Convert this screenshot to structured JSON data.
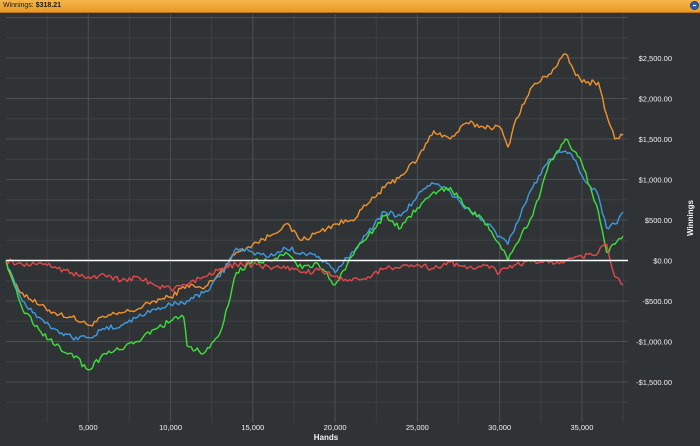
{
  "window": {
    "title_label": "Winnings:",
    "title_value": "$318.21"
  },
  "chart_data": {
    "type": "line",
    "xlabel": "Hands",
    "ylabel": "Winnings",
    "xlim": [
      0,
      37800
    ],
    "ylim": [
      -1500,
      2500
    ],
    "x_ticks": [
      5000,
      10000,
      15000,
      20000,
      25000,
      30000,
      35000
    ],
    "x_tick_labels": [
      "5,000",
      "10,000",
      "15,000",
      "20,000",
      "25,000",
      "30,000",
      "35,000"
    ],
    "y_ticks": [
      2500,
      2000,
      1500,
      1000,
      500,
      0,
      -500,
      -1000,
      -1500
    ],
    "y_tick_labels": [
      "$2,500.00",
      "$2,000.00",
      "$1,500.00",
      "$1,000.00",
      "$500.00",
      "$0.00",
      "-$500.00",
      "-$1,000.00",
      "-$1,500.00"
    ],
    "grid": true,
    "zero_line": true,
    "series": [
      {
        "color": "#f0922e",
        "x": [
          0,
          500,
          1000,
          2000,
          3000,
          4000,
          5000,
          6000,
          7000,
          8000,
          9000,
          10000,
          11000,
          12000,
          13000,
          14000,
          15000,
          16000,
          17000,
          18000,
          19000,
          20000,
          21000,
          22000,
          23000,
          24000,
          25000,
          26000,
          27000,
          28000,
          29000,
          30000,
          30500,
          31000,
          32000,
          33000,
          34000,
          34500,
          35000,
          36000,
          36500,
          37000,
          37500
        ],
        "y": [
          0,
          -300,
          -400,
          -550,
          -650,
          -700,
          -800,
          -700,
          -650,
          -600,
          -500,
          -450,
          -300,
          -350,
          -150,
          100,
          200,
          300,
          450,
          250,
          350,
          450,
          500,
          700,
          900,
          1050,
          1250,
          1600,
          1500,
          1700,
          1650,
          1650,
          1400,
          1750,
          2150,
          2300,
          2550,
          2350,
          2200,
          2200,
          1800,
          1500,
          1550
        ]
      },
      {
        "color": "#3f9ae0",
        "x": [
          0,
          500,
          1000,
          2000,
          3000,
          4000,
          5000,
          6000,
          7000,
          8000,
          9000,
          10000,
          11000,
          12000,
          13000,
          14000,
          15000,
          16000,
          17000,
          18000,
          19000,
          20000,
          21000,
          22000,
          23000,
          24000,
          25000,
          26000,
          27000,
          28000,
          29000,
          30000,
          30500,
          31000,
          32000,
          33000,
          34000,
          34500,
          35000,
          36000,
          36500,
          37000,
          37500
        ],
        "y": [
          0,
          -250,
          -500,
          -700,
          -850,
          -950,
          -950,
          -850,
          -800,
          -700,
          -600,
          -550,
          -500,
          -400,
          -200,
          150,
          100,
          50,
          150,
          100,
          50,
          -150,
          100,
          350,
          600,
          550,
          800,
          950,
          850,
          650,
          500,
          300,
          200,
          450,
          900,
          1250,
          1350,
          1250,
          1050,
          800,
          400,
          450,
          600
        ]
      },
      {
        "color": "#3ddf3a",
        "x": [
          0,
          500,
          1000,
          2000,
          3000,
          4000,
          5000,
          6000,
          7000,
          8000,
          9000,
          10000,
          10800,
          11000,
          12000,
          13000,
          14000,
          15000,
          16000,
          17000,
          18000,
          19000,
          20000,
          21000,
          22000,
          23000,
          24000,
          25000,
          26000,
          27000,
          28000,
          29000,
          30000,
          30500,
          31000,
          32000,
          33000,
          34000,
          34500,
          35000,
          36000,
          36500,
          37000,
          37500
        ],
        "y": [
          0,
          -300,
          -600,
          -850,
          -1050,
          -1150,
          -1350,
          -1150,
          -1100,
          -1000,
          -850,
          -750,
          -700,
          -1050,
          -1150,
          -900,
          -150,
          0,
          0,
          100,
          -100,
          -50,
          -300,
          50,
          300,
          550,
          400,
          650,
          850,
          900,
          650,
          500,
          200,
          0,
          200,
          550,
          1200,
          1500,
          1350,
          1200,
          600,
          100,
          200,
          300
        ]
      },
      {
        "color": "#e04a4a",
        "x": [
          0,
          1000,
          2000,
          3000,
          4000,
          5000,
          6000,
          7000,
          8000,
          9000,
          10000,
          11000,
          12000,
          13000,
          14000,
          15000,
          16000,
          17000,
          18000,
          19000,
          20000,
          21000,
          22000,
          23000,
          24000,
          25000,
          26000,
          27000,
          28000,
          29000,
          30000,
          31000,
          32000,
          33000,
          34000,
          35000,
          36000,
          36500,
          37000,
          37500
        ],
        "y": [
          0,
          -50,
          -30,
          -80,
          -150,
          -200,
          -180,
          -250,
          -200,
          -300,
          -350,
          -300,
          -200,
          -100,
          -50,
          -50,
          -80,
          -100,
          -150,
          -120,
          -200,
          -250,
          -200,
          -100,
          -80,
          -50,
          -100,
          -20,
          -100,
          -50,
          -150,
          -50,
          0,
          -30,
          0,
          50,
          100,
          200,
          -200,
          -300
        ]
      }
    ]
  }
}
